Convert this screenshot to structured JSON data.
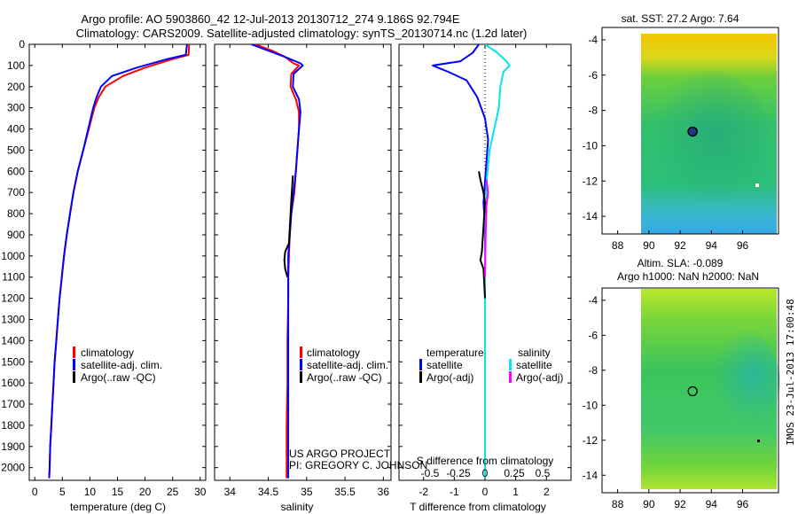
{
  "header": {
    "line1": "Argo profile: AO 5903860_42 12-Jul-2013 20130712_274 9.186S 92.794E",
    "line2": "Climatology: CARS2009. Satellite-adjusted climatology: synTS_20130714.nc (1.2d later)"
  },
  "side_label": "IMOS 23-Jul-2013 17:00:48",
  "colors": {
    "climatology": "#ff0000",
    "satellite": "#0000ff",
    "argo": "#000000",
    "sat_salinity": "#00e5ee",
    "argo_salinity": "#ff00ff"
  },
  "chart_data": [
    {
      "type": "line",
      "id": "temperature",
      "xlabel": "temperature (deg C)",
      "xlim": [
        -1,
        31
      ],
      "ylim": [
        2060,
        0
      ],
      "xticks": [
        0,
        5,
        10,
        15,
        20,
        25,
        30
      ],
      "yticks": [
        0,
        100,
        200,
        300,
        400,
        500,
        600,
        700,
        800,
        900,
        1000,
        1100,
        1200,
        1300,
        1400,
        1500,
        1600,
        1700,
        1800,
        1900,
        2000
      ],
      "legend": [
        "climatology",
        "satellite-adj. clim.",
        "Argo(..raw -QC)"
      ],
      "series": [
        {
          "name": "climatology",
          "color": "#ff0000",
          "x": [
            28.0,
            27.9,
            25.0,
            20.0,
            16.0,
            12.8,
            11.6,
            10.8,
            9.8,
            8.8,
            7.8,
            7.0,
            6.4,
            5.8,
            5.3,
            4.9,
            4.5,
            4.2,
            3.9,
            3.6,
            3.4,
            3.2,
            3.0,
            2.8,
            2.7,
            2.6
          ],
          "y": [
            0,
            50,
            70,
            110,
            150,
            200,
            250,
            300,
            400,
            500,
            600,
            700,
            800,
            900,
            1000,
            1100,
            1200,
            1300,
            1400,
            1500,
            1600,
            1700,
            1800,
            1900,
            2000,
            2050
          ]
        },
        {
          "name": "satellite-adj. clim.",
          "color": "#0000ff",
          "x": [
            27.6,
            27.4,
            24.0,
            18.5,
            14.0,
            12.0,
            11.2,
            10.6,
            9.7,
            8.8,
            7.8,
            7.0,
            6.4,
            5.8,
            5.3,
            4.9,
            4.5,
            4.2,
            3.9,
            3.6,
            3.4,
            3.2,
            3.0,
            2.8,
            2.7,
            2.6
          ],
          "y": [
            0,
            50,
            70,
            110,
            150,
            200,
            250,
            300,
            400,
            500,
            600,
            700,
            800,
            900,
            1000,
            1100,
            1200,
            1300,
            1400,
            1500,
            1600,
            1700,
            1800,
            1900,
            2000,
            2050
          ]
        }
      ]
    },
    {
      "type": "line",
      "id": "salinity",
      "xlabel": "salinity",
      "xlim": [
        33.8,
        36.1
      ],
      "ylim": [
        2060,
        0
      ],
      "xticks": [
        34,
        34.5,
        35,
        35.5,
        36
      ],
      "legend": [
        "climatology",
        "satellite-adj. clim.",
        "Argo(..raw -QC)"
      ],
      "annotations": [
        "US ARGO PROJECT",
        "PI: GREGORY C. JOHNSON"
      ],
      "series": [
        {
          "name": "climatology",
          "color": "#ff0000",
          "x": [
            34.33,
            34.55,
            34.72,
            34.83,
            34.9,
            34.8,
            34.79,
            34.86,
            34.9,
            34.9,
            34.88,
            34.86,
            34.84,
            34.8,
            34.78,
            34.77,
            34.76,
            34.76,
            34.75,
            34.75,
            34.74,
            34.74,
            34.74,
            34.74
          ],
          "y": [
            0,
            30,
            60,
            90,
            100,
            140,
            200,
            260,
            320,
            400,
            500,
            600,
            700,
            800,
            900,
            1000,
            1100,
            1200,
            1400,
            1600,
            1800,
            1900,
            2000,
            2050
          ]
        },
        {
          "name": "satellite-adj. clim.",
          "color": "#0000ff",
          "x": [
            34.28,
            34.5,
            34.72,
            34.92,
            34.95,
            34.83,
            34.82,
            34.9,
            34.92,
            34.9,
            34.88,
            34.86,
            34.83,
            34.8,
            34.78,
            34.76,
            34.76,
            34.76,
            34.76,
            34.76,
            34.76,
            34.76,
            34.76,
            34.76
          ],
          "y": [
            0,
            30,
            60,
            90,
            100,
            140,
            200,
            260,
            320,
            400,
            500,
            600,
            700,
            800,
            900,
            1000,
            1100,
            1200,
            1400,
            1600,
            1800,
            1900,
            2000,
            2050
          ]
        },
        {
          "name": "Argo(..raw -QC)",
          "color": "#000000",
          "x": [
            34.82,
            34.81,
            34.8,
            34.79,
            34.78,
            34.77,
            34.72,
            34.71,
            34.72,
            34.75
          ],
          "y": [
            620,
            680,
            740,
            800,
            870,
            940,
            980,
            1020,
            1060,
            1100
          ]
        }
      ]
    },
    {
      "type": "line",
      "id": "difference",
      "legend_title_left": "temperature",
      "legend_title_right": "salinity",
      "legend_left": [
        "satellite",
        "Argo(-adj)"
      ],
      "legend_right": [
        "satellite",
        "Argo(-adj)"
      ],
      "top_label": "S difference from climatology",
      "top_ticks": [
        "-0.5",
        "-0.25",
        "0",
        "0.25",
        "0.5"
      ],
      "xlabel": "T difference from climatology",
      "xlim": [
        -2.8,
        2.8
      ],
      "ylim": [
        2060,
        0
      ],
      "xticks": [
        -2,
        -1,
        0,
        1,
        2
      ],
      "series": [
        {
          "name": "temperature satellite",
          "color": "#0000ff",
          "x": [
            -0.2,
            -0.4,
            -0.8,
            -1.7,
            -1.2,
            -0.6,
            -0.25,
            0.0,
            0.1,
            0.05,
            0.0,
            -0.05,
            0.0,
            0.0,
            0.0,
            0.0,
            0.0,
            0.0,
            0.0,
            0.0,
            0.0,
            0.0
          ],
          "y": [
            0,
            40,
            80,
            100,
            130,
            170,
            250,
            350,
            450,
            550,
            650,
            750,
            850,
            950,
            1050,
            1200,
            1400,
            1600,
            1800,
            1900,
            2000,
            2050
          ]
        },
        {
          "name": "salinity satellite",
          "color": "#00e5ee",
          "x": [
            0.0,
            0.4,
            0.7,
            0.8,
            0.6,
            0.5,
            0.45,
            0.3,
            0.15,
            0.05,
            0.02,
            0.0,
            0.0,
            0.0,
            0.0,
            0.0,
            0.0
          ],
          "y": [
            0,
            40,
            80,
            100,
            130,
            200,
            300,
            400,
            500,
            650,
            800,
            1000,
            1300,
            1600,
            1900,
            2000,
            2050
          ]
        },
        {
          "name": "temperature Argo(-adj)",
          "color": "#000000",
          "x": [
            -0.2,
            -0.15,
            -0.05,
            0.0,
            -0.1,
            -0.15,
            -0.05,
            0.0
          ],
          "y": [
            600,
            640,
            700,
            750,
            980,
            1020,
            1060,
            1200
          ]
        },
        {
          "name": "salinity Argo(-adj)",
          "color": "#ff00ff",
          "x": [
            0.05,
            0.1,
            0.05,
            0.02,
            0.0
          ],
          "y": [
            640,
            700,
            760,
            900,
            1100
          ]
        }
      ]
    },
    {
      "type": "heatmap",
      "id": "sst_map",
      "title": "sat. SST: 27.2 Argo: 7.64",
      "xlim": [
        87,
        98.3
      ],
      "ylim": [
        -15,
        -3.3
      ],
      "xticks": [
        88,
        90,
        92,
        94,
        96
      ],
      "yticks": [
        -4,
        -6,
        -8,
        -10,
        -12,
        -14
      ],
      "marker": {
        "lon": 92.8,
        "lat": -9.2
      }
    },
    {
      "type": "heatmap",
      "id": "sla_map",
      "title_line1": "Altim. SLA: -0.089",
      "title_line2": "Argo h1000: NaN h2000: NaN",
      "xlim": [
        87,
        98.3
      ],
      "ylim": [
        -15,
        -3.3
      ],
      "xticks": [
        88,
        90,
        92,
        94,
        96
      ],
      "yticks": [
        -4,
        -6,
        -8,
        -10,
        -12,
        -14
      ],
      "marker": {
        "lon": 92.8,
        "lat": -9.2
      }
    }
  ]
}
